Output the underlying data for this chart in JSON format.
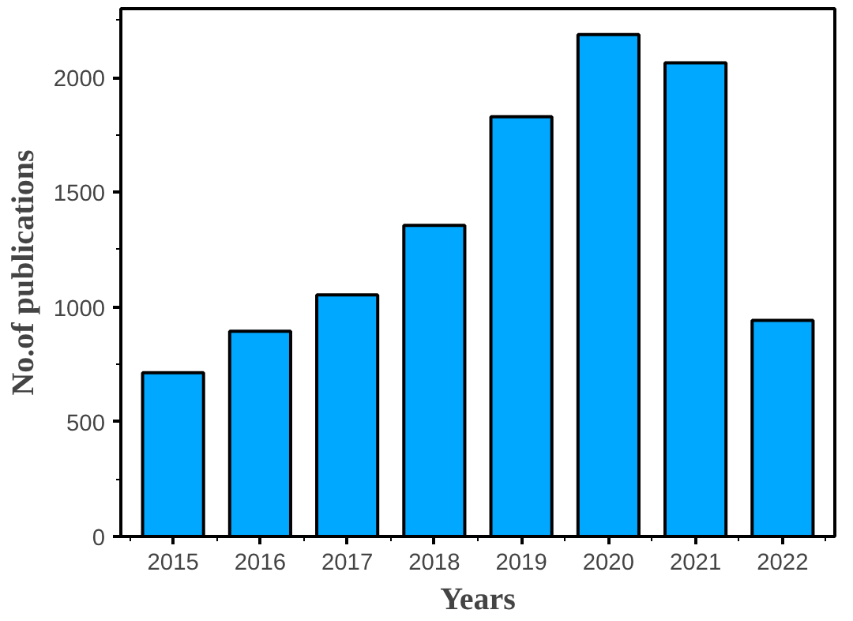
{
  "chart_data": {
    "type": "bar",
    "xlabel": "Years",
    "ylabel": "No.of publications",
    "categories": [
      "2015",
      "2016",
      "2017",
      "2018",
      "2019",
      "2020",
      "2021",
      "2022"
    ],
    "values": [
      714,
      894,
      1053,
      1356,
      1829,
      2187,
      2064,
      942
    ],
    "color": "#00a8ff",
    "ylim": [
      0,
      2300
    ],
    "yticks": [
      0,
      500,
      1000,
      1500,
      2000
    ],
    "grid": false
  }
}
